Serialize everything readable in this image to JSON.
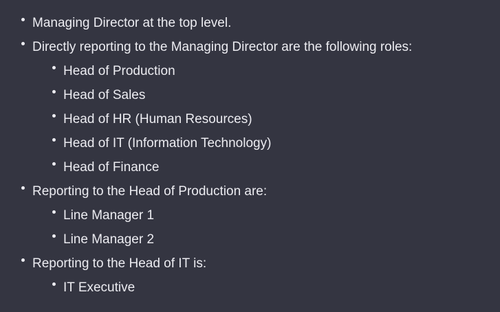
{
  "list": {
    "items": [
      {
        "level": 1,
        "text": "Managing Director at the top level."
      },
      {
        "level": 1,
        "text": "Directly reporting to the Managing Director are the following roles:"
      },
      {
        "level": 2,
        "text": "Head of Production"
      },
      {
        "level": 2,
        "text": "Head of Sales"
      },
      {
        "level": 2,
        "text": "Head of HR (Human Resources)"
      },
      {
        "level": 2,
        "text": "Head of IT (Information Technology)"
      },
      {
        "level": 2,
        "text": "Head of Finance"
      },
      {
        "level": 1,
        "text": "Reporting to the Head of Production are:"
      },
      {
        "level": 2,
        "text": "Line Manager 1"
      },
      {
        "level": 2,
        "text": "Line Manager 2"
      },
      {
        "level": 1,
        "text": "Reporting to the Head of IT is:"
      },
      {
        "level": 2,
        "text": "IT Executive"
      }
    ]
  },
  "colors": {
    "background": "#343541",
    "text": "#ececf1"
  }
}
